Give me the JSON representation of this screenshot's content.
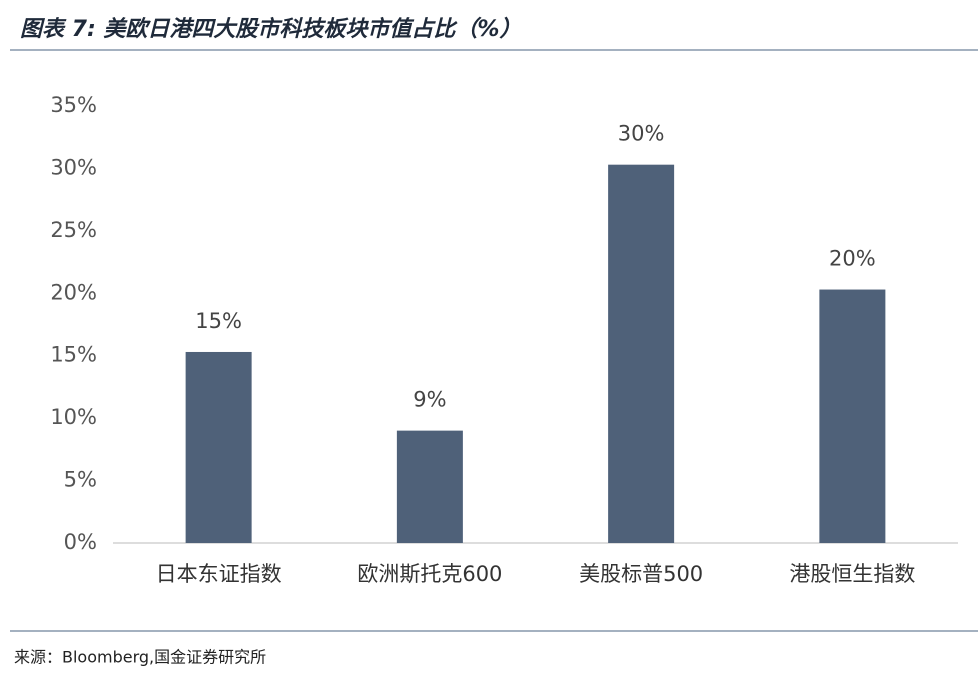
{
  "chart_data": {
    "type": "bar",
    "title": "图表 7:  美欧日港四大股市科技板块市值占比（%）",
    "categories": [
      "日本东证指数",
      "欧洲斯托克600",
      "美股标普500",
      "港股恒生指数"
    ],
    "values": [
      15.3,
      9,
      30.3,
      20.3
    ],
    "value_labels": [
      "15%",
      "9%",
      "30%",
      "20%"
    ],
    "color": "#4f6179",
    "ylim": [
      0,
      35
    ],
    "yticks": [
      {
        "value": 0,
        "label": "0%"
      },
      {
        "value": 5,
        "label": "5%"
      },
      {
        "value": 10,
        "label": "10%"
      },
      {
        "value": 15,
        "label": "15%"
      },
      {
        "value": 20,
        "label": "20%"
      },
      {
        "value": 25,
        "label": "25%"
      },
      {
        "value": 30,
        "label": "30%"
      },
      {
        "value": 35,
        "label": "35%"
      }
    ],
    "grid": false,
    "source": "来源：Bloomberg,国金证券研究所"
  }
}
